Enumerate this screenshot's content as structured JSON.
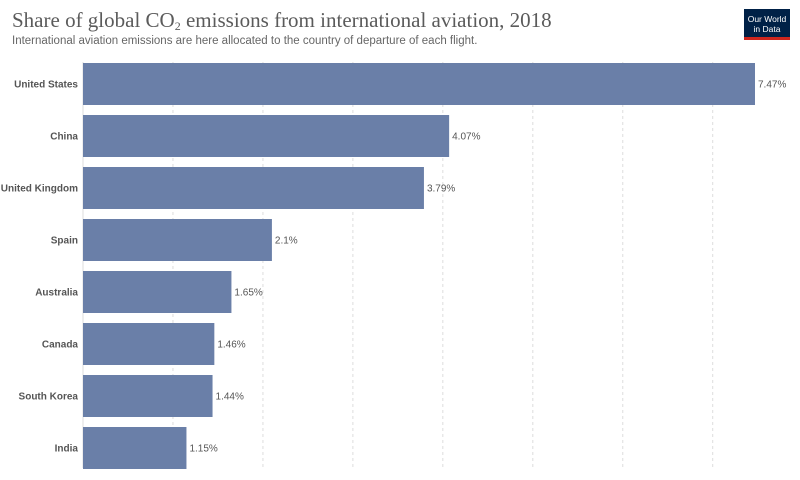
{
  "header": {
    "title_main": "Share of global CO",
    "title_sub": "2",
    "title_rest": " emissions from international aviation, 2018",
    "subtitle": "International aviation emissions are here allocated to the country of departure of each flight.",
    "logo_text": "Our World in Data"
  },
  "colors": {
    "bar": "#6a7fa8",
    "grid": "#dddddd",
    "logo_bg": "#002147",
    "logo_accent": "#ce261e"
  },
  "chart_data": {
    "type": "bar",
    "orientation": "horizontal",
    "title": "Share of global CO2 emissions from international aviation, 2018",
    "subtitle": "International aviation emissions are here allocated to the country of departure of each flight.",
    "categories": [
      "United States",
      "China",
      "United Kingdom",
      "Spain",
      "Australia",
      "Canada",
      "South Korea",
      "India"
    ],
    "values": [
      7.47,
      4.07,
      3.79,
      2.1,
      1.65,
      1.46,
      1.44,
      1.15
    ],
    "value_labels": [
      "7.47%",
      "4.07%",
      "3.79%",
      "2.1%",
      "1.65%",
      "1.46%",
      "1.44%",
      "1.15%"
    ],
    "xlim": [
      0,
      7.47
    ],
    "grid_ticks": [
      0,
      1,
      2,
      3,
      4,
      5,
      6,
      7
    ],
    "grid": true,
    "legend": "none"
  }
}
